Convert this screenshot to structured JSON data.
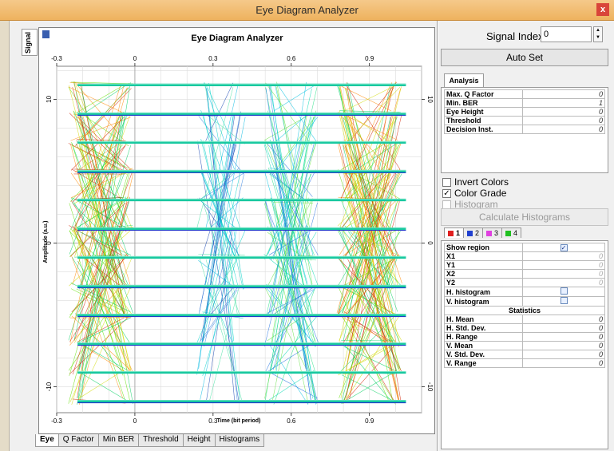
{
  "window": {
    "title": "Eye Diagram Analyzer",
    "close_glyph": "x"
  },
  "left_tab": {
    "label": "Signal"
  },
  "plot": {
    "title": "Eye Diagram Analyzer",
    "xlabel": "Time (bit period)",
    "ylabel": "Amplitude (a.u.)",
    "x_ticks_bottom": [
      "-0.3",
      "0",
      "0.3",
      "0.6",
      "0.9"
    ],
    "x_ticks_top": [
      "-0.3",
      "0",
      "0.3",
      "0.6",
      "0.9"
    ],
    "y_ticks_left": [
      "10",
      "0",
      "-10"
    ],
    "y_ticks_right": [
      "10",
      "0",
      "-10"
    ]
  },
  "chart_data": {
    "type": "scatter",
    "title": "Eye Diagram Analyzer",
    "xlabel": "Time (bit period)",
    "ylabel": "Amplitude (a.u.)",
    "xlim": [
      -0.3,
      1.1
    ],
    "ylim": [
      -11.8,
      12.3
    ],
    "grid": true,
    "levels": [
      11,
      9,
      7,
      5,
      3,
      1,
      -1,
      -3,
      -5,
      -7,
      -9,
      -11
    ],
    "transition_centers": [
      -0.13,
      0.33,
      0.6,
      0.9
    ],
    "color_grade": [
      "#00cc44",
      "#66dd00",
      "#ccdd00",
      "#ff8800",
      "#cc2200"
    ]
  },
  "bottom_tabs": [
    "Eye",
    "Q Factor",
    "Min BER",
    "Threshold",
    "Height",
    "Histograms"
  ],
  "signal_index": {
    "label": "Signal Index",
    "value": "0"
  },
  "auto_set_label": "Auto Set",
  "analysis": {
    "tab_label": "Analysis",
    "rows": [
      {
        "label": "Max. Q Factor",
        "value": "0"
      },
      {
        "label": "Min. BER",
        "value": "1"
      },
      {
        "label": "Eye Height",
        "value": "0"
      },
      {
        "label": "Threshold",
        "value": "0"
      },
      {
        "label": "Decision Inst.",
        "value": "0"
      }
    ]
  },
  "options": {
    "invert_colors": {
      "label": "Invert Colors",
      "checked": false
    },
    "color_grade": {
      "label": "Color Grade",
      "checked": true
    },
    "histogram": {
      "label": "Histogram",
      "checked": false
    }
  },
  "calculate_label": "Calculate Histograms",
  "channel_tabs": [
    {
      "label": "1",
      "color": "#e02020"
    },
    {
      "label": "2",
      "color": "#2040d0"
    },
    {
      "label": "3",
      "color": "#e040e0"
    },
    {
      "label": "4",
      "color": "#20c020"
    }
  ],
  "region": {
    "show_region_label": "Show region",
    "coords": [
      {
        "label": "X1",
        "value": "0"
      },
      {
        "label": "Y1",
        "value": "0"
      },
      {
        "label": "X2",
        "value": "0"
      },
      {
        "label": "Y2",
        "value": "0"
      }
    ],
    "h_hist_label": "H. histogram",
    "v_hist_label": "V. histogram",
    "statistics_label": "Statistics",
    "stats": [
      {
        "label": "H. Mean",
        "value": "0"
      },
      {
        "label": "H. Std. Dev.",
        "value": "0"
      },
      {
        "label": "H. Range",
        "value": "0"
      },
      {
        "label": "V. Mean",
        "value": "0"
      },
      {
        "label": "V. Std. Dev.",
        "value": "0"
      },
      {
        "label": "V. Range",
        "value": "0"
      }
    ]
  }
}
